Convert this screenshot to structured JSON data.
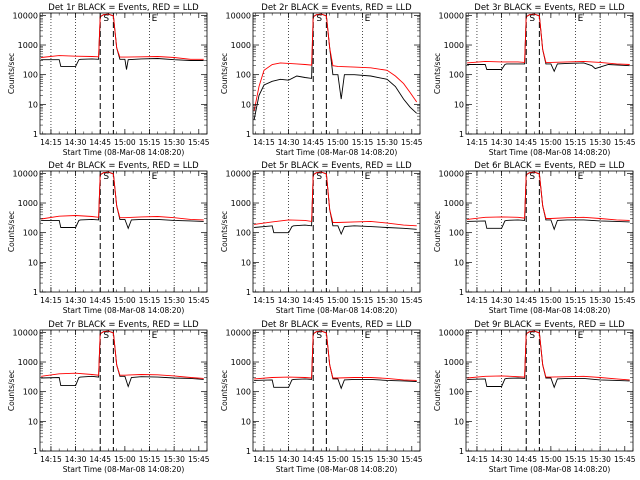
{
  "figure": {
    "xtick_labels": [
      "14:15",
      "14:30",
      "14:45",
      "15:00",
      "15:15",
      "15:30",
      "15:45"
    ],
    "xlabel": "Start Time (08-Mar-08 14:08:20)",
    "ylabel": "Counts/sec",
    "ytick_labels": [
      "1",
      "10",
      "100",
      "1000",
      "10000"
    ],
    "event_color": "#000000",
    "lld_color": "#ff0000",
    "marker_labels": [
      "S",
      "E"
    ]
  },
  "chart_data": [
    {
      "type": "line",
      "title": "Det 1r BLACK = Events, RED = LLD",
      "ylim": [
        1,
        12000
      ],
      "xlim": [
        "14:08:20",
        "15:50:00"
      ],
      "reference_times": [
        "14:15",
        "14:30",
        "15:15",
        "15:30"
      ],
      "attenuator_times": [
        "14:45",
        "14:53"
      ],
      "series": [
        {
          "name": "Events",
          "x": [
            "14:09",
            "14:20",
            "14:21",
            "14:30",
            "14:32",
            "14:33",
            "14:40",
            "14:44",
            "14:45",
            "14:47",
            "14:50",
            "14:53",
            "14:55",
            "14:57",
            "15:00",
            "15:01",
            "15:02",
            "15:10",
            "15:20",
            "15:30",
            "15:40",
            "15:48"
          ],
          "values": [
            320,
            320,
            190,
            190,
            320,
            330,
            340,
            330,
            9000,
            10500,
            11000,
            9500,
            800,
            330,
            330,
            150,
            320,
            340,
            350,
            320,
            300,
            300
          ]
        },
        {
          "name": "LLD",
          "x": [
            "14:09",
            "14:20",
            "14:30",
            "14:40",
            "14:44",
            "14:45",
            "14:47",
            "14:50",
            "14:53",
            "14:55",
            "14:57",
            "15:00",
            "15:10",
            "15:20",
            "15:30",
            "15:40",
            "15:48"
          ],
          "values": [
            380,
            440,
            420,
            410,
            400,
            9000,
            10500,
            11000,
            9500,
            800,
            390,
            390,
            400,
            410,
            380,
            330,
            330
          ]
        }
      ]
    },
    {
      "type": "line",
      "title": "Det 2r BLACK = Events, RED = LLD",
      "ylim": [
        1,
        12000
      ],
      "xlim": [
        "14:08:20",
        "15:50:00"
      ],
      "reference_times": [
        "14:15",
        "14:30",
        "15:15",
        "15:30"
      ],
      "attenuator_times": [
        "14:45",
        "14:53"
      ],
      "series": [
        {
          "name": "Events",
          "x": [
            "14:09",
            "14:12",
            "14:15",
            "14:20",
            "14:25",
            "14:30",
            "14:35",
            "14:40",
            "14:44",
            "14:45",
            "14:47",
            "14:50",
            "14:53",
            "14:55",
            "14:57",
            "15:00",
            "15:02",
            "15:04",
            "15:10",
            "15:20",
            "15:30",
            "15:35",
            "15:40",
            "15:44",
            "15:48"
          ],
          "values": [
            3,
            20,
            45,
            60,
            70,
            65,
            90,
            80,
            75,
            9000,
            10500,
            11000,
            9500,
            800,
            100,
            100,
            15,
            100,
            100,
            90,
            70,
            40,
            15,
            8,
            5
          ]
        },
        {
          "name": "LLD",
          "x": [
            "14:09",
            "14:12",
            "14:15",
            "14:20",
            "14:25",
            "14:30",
            "14:35",
            "14:40",
            "14:44",
            "14:45",
            "14:47",
            "14:50",
            "14:53",
            "14:55",
            "14:57",
            "15:00",
            "15:10",
            "15:20",
            "15:30",
            "15:35",
            "15:40",
            "15:44",
            "15:48"
          ],
          "values": [
            6,
            40,
            140,
            220,
            250,
            240,
            230,
            220,
            210,
            9000,
            10500,
            11000,
            9500,
            800,
            200,
            190,
            180,
            170,
            140,
            90,
            50,
            25,
            12
          ]
        }
      ]
    },
    {
      "type": "line",
      "title": "Det 3r BLACK = Events, RED = LLD",
      "ylim": [
        1,
        12000
      ],
      "xlim": [
        "14:08:20",
        "15:50:00"
      ],
      "reference_times": [
        "14:15",
        "14:30",
        "15:15",
        "15:30"
      ],
      "attenuator_times": [
        "14:45",
        "14:53"
      ],
      "series": [
        {
          "name": "Events",
          "x": [
            "14:09",
            "14:20",
            "14:21",
            "14:30",
            "14:32",
            "14:33",
            "14:40",
            "14:44",
            "14:45",
            "14:47",
            "14:50",
            "14:53",
            "14:55",
            "14:57",
            "15:00",
            "15:02",
            "15:04",
            "15:10",
            "15:20",
            "15:25",
            "15:27",
            "15:35",
            "15:48"
          ],
          "values": [
            220,
            220,
            150,
            150,
            220,
            230,
            230,
            230,
            9000,
            10500,
            11000,
            9500,
            700,
            230,
            230,
            130,
            230,
            240,
            250,
            200,
            160,
            220,
            200
          ]
        },
        {
          "name": "LLD",
          "x": [
            "14:09",
            "14:20",
            "14:30",
            "14:40",
            "14:44",
            "14:45",
            "14:47",
            "14:50",
            "14:53",
            "14:55",
            "14:57",
            "15:00",
            "15:10",
            "15:20",
            "15:30",
            "15:40",
            "15:48"
          ],
          "values": [
            250,
            280,
            270,
            270,
            260,
            9000,
            10500,
            11000,
            9500,
            700,
            260,
            260,
            270,
            280,
            260,
            230,
            220
          ]
        }
      ]
    },
    {
      "type": "line",
      "title": "Det 4r BLACK = Events, RED = LLD",
      "ylim": [
        1,
        12000
      ],
      "xlim": [
        "14:08:20",
        "15:50:00"
      ],
      "reference_times": [
        "14:15",
        "14:30",
        "15:15",
        "15:30"
      ],
      "attenuator_times": [
        "14:45",
        "14:53"
      ],
      "series": [
        {
          "name": "Events",
          "x": [
            "14:09",
            "14:20",
            "14:21",
            "14:30",
            "14:32",
            "14:33",
            "14:40",
            "14:44",
            "14:45",
            "14:47",
            "14:50",
            "14:53",
            "14:55",
            "14:57",
            "15:00",
            "15:02",
            "15:04",
            "15:10",
            "15:20",
            "15:30",
            "15:40",
            "15:48"
          ],
          "values": [
            260,
            260,
            150,
            150,
            260,
            270,
            280,
            270,
            9000,
            10500,
            11000,
            9500,
            800,
            280,
            280,
            140,
            270,
            280,
            280,
            260,
            250,
            240
          ]
        },
        {
          "name": "LLD",
          "x": [
            "14:09",
            "14:20",
            "14:30",
            "14:40",
            "14:44",
            "14:45",
            "14:47",
            "14:50",
            "14:53",
            "14:55",
            "14:57",
            "15:00",
            "15:10",
            "15:20",
            "15:30",
            "15:40",
            "15:48"
          ],
          "values": [
            290,
            360,
            380,
            350,
            330,
            9000,
            10500,
            11000,
            9500,
            800,
            320,
            320,
            340,
            350,
            320,
            280,
            270
          ]
        }
      ]
    },
    {
      "type": "line",
      "title": "Det 5r BLACK = Events, RED = LLD",
      "ylim": [
        1,
        12000
      ],
      "xlim": [
        "14:08:20",
        "15:50:00"
      ],
      "reference_times": [
        "14:15",
        "14:30",
        "15:15",
        "15:30"
      ],
      "attenuator_times": [
        "14:45",
        "14:53"
      ],
      "series": [
        {
          "name": "Events",
          "x": [
            "14:09",
            "14:20",
            "14:21",
            "14:30",
            "14:32",
            "14:33",
            "14:40",
            "14:44",
            "14:45",
            "14:47",
            "14:50",
            "14:53",
            "14:55",
            "14:57",
            "15:00",
            "15:02",
            "15:04",
            "15:10",
            "15:20",
            "15:30",
            "15:40",
            "15:48"
          ],
          "values": [
            150,
            170,
            100,
            100,
            160,
            170,
            180,
            170,
            9000,
            10500,
            11000,
            9500,
            600,
            170,
            170,
            90,
            160,
            170,
            160,
            150,
            140,
            130
          ]
        },
        {
          "name": "LLD",
          "x": [
            "14:09",
            "14:20",
            "14:30",
            "14:40",
            "14:44",
            "14:45",
            "14:47",
            "14:50",
            "14:53",
            "14:55",
            "14:57",
            "15:00",
            "15:10",
            "15:20",
            "15:30",
            "15:40",
            "15:48"
          ],
          "values": [
            190,
            230,
            270,
            260,
            240,
            9000,
            10500,
            11000,
            9500,
            600,
            220,
            220,
            230,
            240,
            210,
            180,
            170
          ]
        }
      ]
    },
    {
      "type": "line",
      "title": "Det 6r BLACK = Events, RED = LLD",
      "ylim": [
        1,
        12000
      ],
      "xlim": [
        "14:08:20",
        "15:50:00"
      ],
      "reference_times": [
        "14:15",
        "14:30",
        "15:15",
        "15:30"
      ],
      "attenuator_times": [
        "14:45",
        "14:53"
      ],
      "series": [
        {
          "name": "Events",
          "x": [
            "14:09",
            "14:20",
            "14:21",
            "14:30",
            "14:32",
            "14:33",
            "14:40",
            "14:44",
            "14:45",
            "14:47",
            "14:50",
            "14:53",
            "14:55",
            "14:57",
            "15:00",
            "15:02",
            "15:04",
            "15:10",
            "15:20",
            "15:30",
            "15:40",
            "15:48"
          ],
          "values": [
            240,
            250,
            140,
            140,
            250,
            260,
            270,
            260,
            9000,
            10500,
            11000,
            9500,
            800,
            270,
            270,
            130,
            260,
            270,
            270,
            250,
            240,
            230
          ]
        },
        {
          "name": "LLD",
          "x": [
            "14:09",
            "14:20",
            "14:30",
            "14:40",
            "14:44",
            "14:45",
            "14:47",
            "14:50",
            "14:53",
            "14:55",
            "14:57",
            "15:00",
            "15:10",
            "15:20",
            "15:30",
            "15:40",
            "15:48"
          ],
          "values": [
            280,
            330,
            340,
            330,
            310,
            9000,
            10500,
            11000,
            9500,
            800,
            300,
            300,
            320,
            330,
            300,
            270,
            260
          ]
        }
      ]
    },
    {
      "type": "line",
      "title": "Det 7r BLACK = Events, RED = LLD",
      "ylim": [
        1,
        12000
      ],
      "xlim": [
        "14:08:20",
        "15:50:00"
      ],
      "reference_times": [
        "14:15",
        "14:30",
        "15:15",
        "15:30"
      ],
      "attenuator_times": [
        "14:45",
        "14:53"
      ],
      "series": [
        {
          "name": "Events",
          "x": [
            "14:09",
            "14:20",
            "14:21",
            "14:30",
            "14:32",
            "14:33",
            "14:40",
            "14:44",
            "14:45",
            "14:47",
            "14:50",
            "14:53",
            "14:55",
            "14:57",
            "15:00",
            "15:02",
            "15:04",
            "15:10",
            "15:20",
            "15:30",
            "15:40",
            "15:48"
          ],
          "values": [
            290,
            300,
            160,
            160,
            300,
            310,
            330,
            310,
            9000,
            10500,
            11000,
            9500,
            800,
            330,
            330,
            150,
            300,
            320,
            310,
            290,
            280,
            260
          ]
        },
        {
          "name": "LLD",
          "x": [
            "14:09",
            "14:20",
            "14:30",
            "14:40",
            "14:44",
            "14:45",
            "14:47",
            "14:50",
            "14:53",
            "14:55",
            "14:57",
            "15:00",
            "15:10",
            "15:20",
            "15:30",
            "15:40",
            "15:48"
          ],
          "values": [
            330,
            400,
            420,
            380,
            360,
            9000,
            10500,
            11000,
            9500,
            800,
            360,
            360,
            380,
            370,
            340,
            300,
            280
          ]
        }
      ]
    },
    {
      "type": "line",
      "title": "Det 8r BLACK = Events, RED = LLD",
      "ylim": [
        1,
        12000
      ],
      "xlim": [
        "14:08:20",
        "15:50:00"
      ],
      "reference_times": [
        "14:15",
        "14:30",
        "15:15",
        "15:30"
      ],
      "attenuator_times": [
        "14:45",
        "14:53"
      ],
      "series": [
        {
          "name": "Events",
          "x": [
            "14:09",
            "14:20",
            "14:21",
            "14:30",
            "14:32",
            "14:33",
            "14:40",
            "14:44",
            "14:45",
            "14:47",
            "14:50",
            "14:53",
            "14:55",
            "14:57",
            "15:00",
            "15:02",
            "15:04",
            "15:10",
            "15:20",
            "15:30",
            "15:40",
            "15:48"
          ],
          "values": [
            240,
            250,
            140,
            140,
            250,
            260,
            270,
            260,
            9000,
            10500,
            11000,
            9500,
            800,
            270,
            270,
            130,
            250,
            260,
            260,
            240,
            230,
            220
          ]
        },
        {
          "name": "LLD",
          "x": [
            "14:09",
            "14:20",
            "14:30",
            "14:40",
            "14:44",
            "14:45",
            "14:47",
            "14:50",
            "14:53",
            "14:55",
            "14:57",
            "15:00",
            "15:10",
            "15:20",
            "15:30",
            "15:40",
            "15:48"
          ],
          "values": [
            270,
            300,
            310,
            300,
            290,
            9000,
            10500,
            11000,
            9500,
            800,
            290,
            290,
            300,
            300,
            280,
            250,
            240
          ]
        }
      ]
    },
    {
      "type": "line",
      "title": "Det 9r BLACK = Events, RED = LLD",
      "ylim": [
        1,
        12000
      ],
      "xlim": [
        "14:08:20",
        "15:50:00"
      ],
      "reference_times": [
        "14:15",
        "14:30",
        "15:15",
        "15:30"
      ],
      "attenuator_times": [
        "14:45",
        "14:53"
      ],
      "series": [
        {
          "name": "Events",
          "x": [
            "14:09",
            "14:20",
            "14:21",
            "14:30",
            "14:32",
            "14:33",
            "14:40",
            "14:44",
            "14:45",
            "14:47",
            "14:50",
            "14:53",
            "14:55",
            "14:57",
            "15:00",
            "15:02",
            "15:04",
            "15:10",
            "15:20",
            "15:30",
            "15:40",
            "15:48"
          ],
          "values": [
            260,
            270,
            150,
            150,
            270,
            280,
            290,
            280,
            9000,
            10500,
            11000,
            9500,
            800,
            290,
            290,
            140,
            270,
            280,
            280,
            250,
            240,
            230
          ]
        },
        {
          "name": "LLD",
          "x": [
            "14:09",
            "14:20",
            "14:30",
            "14:40",
            "14:44",
            "14:45",
            "14:47",
            "14:50",
            "14:53",
            "14:55",
            "14:57",
            "15:00",
            "15:10",
            "15:20",
            "15:30",
            "15:40",
            "15:48"
          ],
          "values": [
            290,
            330,
            340,
            320,
            310,
            9000,
            10500,
            11000,
            9500,
            800,
            310,
            310,
            320,
            330,
            300,
            270,
            250
          ]
        }
      ]
    }
  ]
}
